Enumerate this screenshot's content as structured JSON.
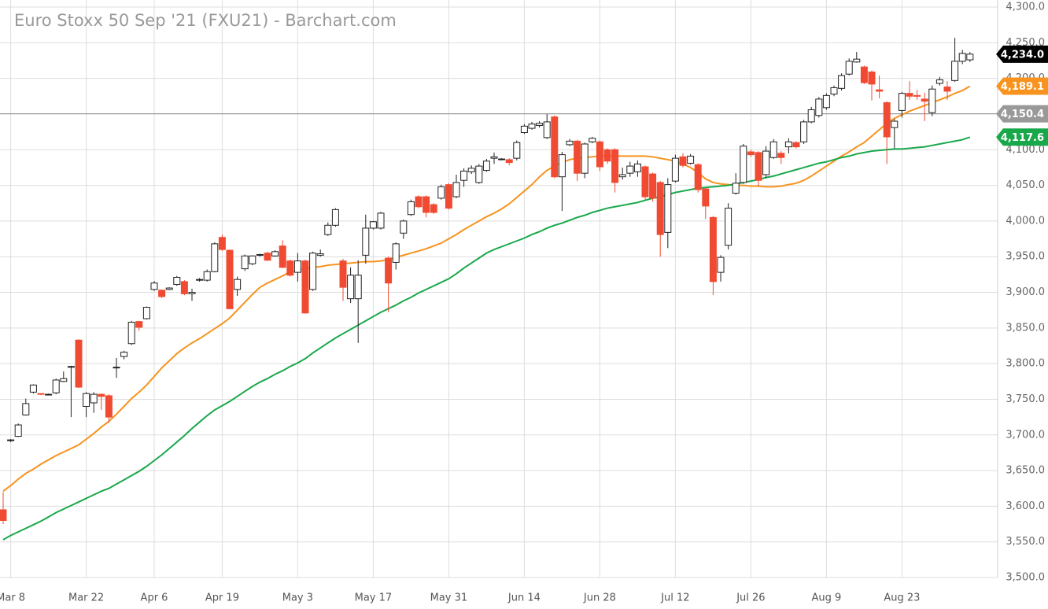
{
  "chart_data": {
    "type": "candlestick",
    "title": "Euro Stoxx 50 Sep '21 (FXU21) - Barchart.com",
    "categories": [
      null,
      "Mar 8",
      null,
      null,
      null,
      null,
      null,
      null,
      null,
      null,
      null,
      "Mar 22",
      null,
      null,
      null,
      null,
      null,
      null,
      null,
      null,
      "Apr 6",
      null,
      null,
      null,
      null,
      null,
      null,
      null,
      null,
      "Apr 19",
      null,
      null,
      null,
      null,
      null,
      null,
      null,
      null,
      null,
      "May 3",
      null,
      null,
      null,
      null,
      null,
      null,
      null,
      null,
      null,
      "May 17",
      null,
      null,
      null,
      null,
      null,
      null,
      null,
      null,
      null,
      "May 31",
      null,
      null,
      null,
      null,
      null,
      null,
      null,
      null,
      null,
      "Jun 14",
      null,
      null,
      null,
      null,
      null,
      null,
      null,
      null,
      null,
      "Jun 28",
      null,
      null,
      null,
      null,
      null,
      null,
      null,
      null,
      null,
      "Jul 12",
      null,
      null,
      null,
      null,
      null,
      null,
      null,
      null,
      null,
      "Jul 26",
      null,
      null,
      null,
      null,
      null,
      null,
      null,
      null,
      null,
      "Aug 9",
      null,
      null,
      null,
      null,
      null,
      null,
      null,
      null,
      null,
      "Aug 23",
      null,
      null,
      null,
      null,
      null,
      null,
      null,
      null,
      null
    ],
    "open": [
      3595,
      3692,
      3698,
      3728,
      3760,
      3758,
      3757,
      3759,
      3775,
      3795,
      3833,
      3740,
      3745,
      3757,
      3755,
      3794,
      3810,
      3828,
      3859,
      3863,
      3904,
      3903,
      3904,
      3911,
      3915,
      3898,
      3917,
      3917,
      3929,
      3977,
      3959,
      3904,
      3933,
      3940,
      3952,
      3955,
      3951,
      3965,
      3944,
      3928,
      3944,
      3904,
      3952,
      3981,
      3994,
      3944,
      3891,
      3891,
      3952,
      3990,
      3990,
      3948,
      3942,
      3983,
      4009,
      4034,
      4034,
      4023,
      4032,
      4051,
      4034,
      4057,
      4069,
      4054,
      4071,
      4088,
      4087,
      4086,
      4088,
      4124,
      4130,
      4134,
      4117,
      4146,
      4062,
      4107,
      4112,
      4067,
      4111,
      4111,
      4100,
      4100,
      4062,
      4067,
      4069,
      4076,
      4066,
      4054,
      3984,
      4056,
      4090,
      4081,
      4079,
      4045,
      4005,
      3928,
      3966,
      4039,
      4054,
      4097,
      4096,
      4065,
      4089,
      4095,
      4104,
      4110,
      4111,
      4139,
      4148,
      4159,
      4178,
      4186,
      4206,
      4223,
      4216,
      4209,
      4184,
      4166,
      4131,
      4155,
      4179,
      4176,
      4171,
      4152,
      4193,
      4188,
      4197,
      4224,
      4226
    ],
    "high": [
      3620,
      3694,
      3716,
      3751,
      3771,
      3758,
      3758,
      3779,
      3789,
      3797,
      3834,
      3760,
      3760,
      3758,
      3757,
      3808,
      3818,
      3860,
      3860,
      3880,
      3916,
      3904,
      3907,
      3923,
      3917,
      3905,
      3920,
      3932,
      3970,
      3981,
      3960,
      3922,
      3953,
      3952,
      3954,
      3957,
      3959,
      3973,
      3946,
      3955,
      3946,
      3957,
      3960,
      3998,
      4018,
      3947,
      3935,
      3945,
      4009,
      4000,
      4013,
      3950,
      3970,
      4002,
      4030,
      4036,
      4036,
      4025,
      4051,
      4053,
      4065,
      4074,
      4078,
      4080,
      4087,
      4096,
      4088,
      4088,
      4113,
      4136,
      4139,
      4140,
      4150,
      4148,
      4097,
      4115,
      4114,
      4110,
      4118,
      4113,
      4102,
      4102,
      4075,
      4083,
      4085,
      4078,
      4068,
      4056,
      4060,
      4093,
      4095,
      4094,
      4081,
      4047,
      4007,
      3952,
      4025,
      4067,
      4108,
      4100,
      4098,
      4105,
      4115,
      4098,
      4116,
      4112,
      4142,
      4160,
      4174,
      4179,
      4190,
      4207,
      4228,
      4237,
      4218,
      4211,
      4204,
      4168,
      4143,
      4181,
      4196,
      4184,
      4180,
      4190,
      4202,
      4196,
      4257,
      4240,
      4237
    ],
    "low": [
      3575,
      3690,
      3697,
      3727,
      3758,
      3756,
      3756,
      3757,
      3774,
      3725,
      3766,
      3725,
      3731,
      3735,
      3717,
      3780,
      3806,
      3826,
      3846,
      3862,
      3902,
      3892,
      3903,
      3909,
      3896,
      3888,
      3915,
      3915,
      3928,
      3958,
      3876,
      3895,
      3930,
      3938,
      3950,
      3944,
      3950,
      3934,
      3922,
      3915,
      3870,
      3902,
      3950,
      3979,
      3992,
      3888,
      3885,
      3829,
      3940,
      3988,
      3988,
      3872,
      3932,
      3975,
      4007,
      4018,
      4005,
      4010,
      4030,
      4016,
      4032,
      4048,
      4066,
      4052,
      4069,
      4080,
      4085,
      4078,
      4085,
      4122,
      4128,
      4131,
      4115,
      4060,
      4014,
      4105,
      4056,
      4060,
      4109,
      4070,
      4080,
      4040,
      4058,
      4062,
      4062,
      4030,
      4027,
      3950,
      3962,
      4054,
      4075,
      4079,
      4040,
      4003,
      3896,
      3915,
      3960,
      4037,
      4052,
      4090,
      4048,
      4060,
      4087,
      4080,
      4095,
      4102,
      4108,
      4137,
      4145,
      4156,
      4175,
      4183,
      4204,
      4222,
      4192,
      4169,
      4172,
      4080,
      4102,
      4145,
      4170,
      4170,
      4140,
      4147,
      4190,
      4170,
      4195,
      4220,
      4223
    ],
    "close": [
      3580,
      3693,
      3714,
      3744,
      3770,
      3757,
      3757,
      3777,
      3779,
      3796,
      3767,
      3758,
      3757,
      3754,
      3725,
      3795,
      3816,
      3858,
      3851,
      3879,
      3913,
      3894,
      3906,
      3921,
      3898,
      3900,
      3918,
      3929,
      3968,
      3960,
      3877,
      3918,
      3951,
      3951,
      3953,
      3945,
      3957,
      3935,
      3924,
      3944,
      3871,
      3955,
      3954,
      3994,
      4016,
      3907,
      3924,
      3924,
      3990,
      3999,
      4011,
      3913,
      3968,
      4000,
      4027,
      4020,
      4012,
      4012,
      4048,
      4018,
      4054,
      4070,
      4074,
      4077,
      4084,
      4090,
      4087,
      4082,
      4110,
      4133,
      4136,
      4137,
      4139,
      4062,
      4093,
      4112,
      4067,
      4108,
      4116,
      4076,
      4084,
      4054,
      4065,
      4077,
      4080,
      4034,
      4032,
      3981,
      4051,
      4088,
      4078,
      4091,
      4044,
      4021,
      3915,
      3949,
      4018,
      4053,
      4105,
      4093,
      4057,
      4098,
      4111,
      4089,
      4111,
      4104,
      4139,
      4156,
      4171,
      4176,
      4187,
      4204,
      4224,
      4227,
      4194,
      4192,
      4182,
      4118,
      4140,
      4179,
      4175,
      4175,
      4168,
      4185,
      4198,
      4182,
      4224,
      4235,
      4234
    ],
    "up_color": "#ffffff",
    "down_color": "#f04b32",
    "moving_averages": [
      {
        "color": "#f7931e",
        "values": [
          3621,
          3629,
          3638,
          3646,
          3652,
          3659,
          3665,
          3671,
          3676,
          3681,
          3686,
          3694,
          3702,
          3711,
          3719,
          3729,
          3740,
          3751,
          3760,
          3770,
          3782,
          3794,
          3804,
          3814,
          3822,
          3829,
          3835,
          3842,
          3849,
          3856,
          3864,
          3875,
          3886,
          3897,
          3907,
          3913,
          3918,
          3923,
          3929,
          3931,
          3933,
          3935,
          3936,
          3938,
          3939,
          3940,
          3941,
          3942,
          3943,
          3943,
          3944,
          3946,
          3949,
          3952,
          3955,
          3958,
          3961,
          3965,
          3969,
          3975,
          3981,
          3988,
          3994,
          4000,
          4006,
          4011,
          4017,
          4024,
          4033,
          4042,
          4051,
          4062,
          4071,
          4077,
          4082,
          4086,
          4088,
          4089,
          4090,
          4091,
          4091,
          4091,
          4091,
          4091,
          4091,
          4091,
          4090,
          4088,
          4086,
          4084,
          4080,
          4075,
          4068,
          4059,
          4054,
          4052,
          4051,
          4050,
          4050,
          4049,
          4049,
          4048,
          4048,
          4049,
          4051,
          4053,
          4057,
          4063,
          4070,
          4077,
          4084,
          4091,
          4097,
          4104,
          4110,
          4119,
          4128,
          4137,
          4144,
          4149,
          4154,
          4158,
          4162,
          4166,
          4170,
          4174,
          4179,
          4183,
          4189.1
        ]
      },
      {
        "color": "#18a84a",
        "values": [
          3553,
          3559,
          3564,
          3569,
          3574,
          3579,
          3585,
          3591,
          3596,
          3601,
          3606,
          3611,
          3616,
          3621,
          3625,
          3631,
          3637,
          3643,
          3649,
          3656,
          3664,
          3672,
          3681,
          3690,
          3699,
          3709,
          3718,
          3727,
          3735,
          3741,
          3747,
          3754,
          3761,
          3768,
          3774,
          3779,
          3785,
          3790,
          3796,
          3801,
          3807,
          3815,
          3822,
          3829,
          3836,
          3842,
          3848,
          3854,
          3860,
          3866,
          3872,
          3877,
          3882,
          3888,
          3893,
          3899,
          3904,
          3909,
          3914,
          3919,
          3926,
          3934,
          3941,
          3948,
          3955,
          3960,
          3964,
          3968,
          3972,
          3976,
          3981,
          3985,
          3990,
          3994,
          3997,
          4001,
          4005,
          4008,
          4012,
          4015,
          4018,
          4020,
          4022,
          4024,
          4026,
          4029,
          4032,
          4034,
          4037,
          4040,
          4042,
          4044,
          4046,
          4047,
          4048,
          4049,
          4050,
          4052,
          4054,
          4056,
          4058,
          4061,
          4063,
          4066,
          4069,
          4072,
          4075,
          4078,
          4081,
          4083,
          4086,
          4089,
          4091,
          4094,
          4096,
          4098,
          4099,
          4100,
          4101,
          4101,
          4102,
          4103,
          4104,
          4106,
          4108,
          4110,
          4112,
          4114,
          4117.6
        ]
      }
    ],
    "price_labels": [
      {
        "value": 4234.0,
        "label": "4,234.0",
        "color": "#000000"
      },
      {
        "value": 4189.1,
        "label": "4,189.1",
        "color": "#f7931e"
      },
      {
        "value": 4150.4,
        "label": "4,150.4",
        "color": "#999999",
        "line": true
      },
      {
        "value": 4117.6,
        "label": "4,117.6",
        "color": "#18a84a"
      }
    ],
    "ylim": [
      3500,
      4300
    ],
    "yticks": [
      {
        "value": 3500,
        "label": "3,500.0"
      },
      {
        "value": 3550,
        "label": "3,550.0"
      },
      {
        "value": 3600,
        "label": "3,600.0"
      },
      {
        "value": 3650,
        "label": "3,650.0"
      },
      {
        "value": 3700,
        "label": "3,700.0"
      },
      {
        "value": 3750,
        "label": "3,750.0"
      },
      {
        "value": 3800,
        "label": "3,800.0"
      },
      {
        "value": 3850,
        "label": "3,850.0"
      },
      {
        "value": 3900,
        "label": "3,900.0"
      },
      {
        "value": 3950,
        "label": "3,950.0"
      },
      {
        "value": 4000,
        "label": "4,000.0"
      },
      {
        "value": 4050,
        "label": "4,050.0"
      },
      {
        "value": 4100,
        "label": "4,100.0"
      },
      {
        "value": 4150,
        "label": "4,150.0"
      },
      {
        "value": 4200,
        "label": "4,200.0"
      },
      {
        "value": 4250,
        "label": "4,250.0"
      },
      {
        "value": 4300,
        "label": "4,300.0"
      }
    ],
    "grid": true
  }
}
